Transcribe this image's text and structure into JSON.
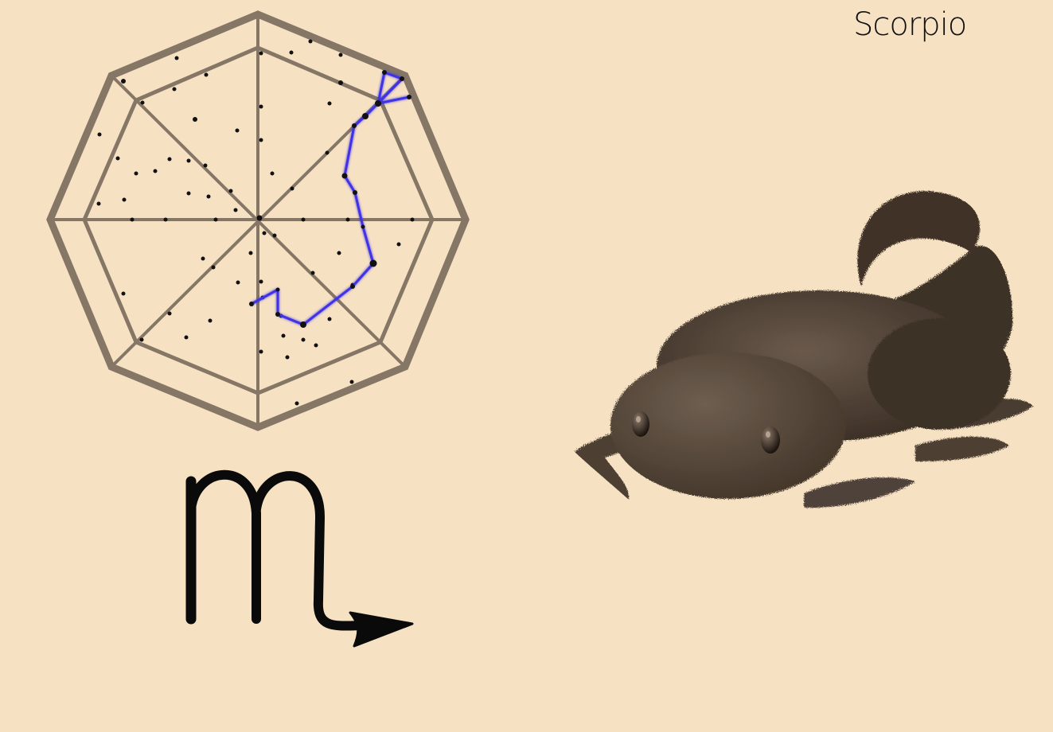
{
  "title": "Scorpio",
  "symbol": {
    "name": "scorpio-zodiac-symbol"
  },
  "colors": {
    "background": "#f6e2c3",
    "chart_frame": "#857666",
    "constellation_line": "#3f32e6",
    "star": "#111111",
    "creature": "#4a3c31"
  }
}
